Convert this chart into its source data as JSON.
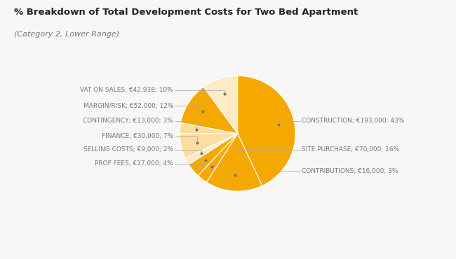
{
  "title": "% Breakdown of Total Development Costs for Two Bed Apartment",
  "subtitle": "(Category 2, Lower Range)",
  "values": [
    43,
    16,
    3,
    4,
    2,
    7,
    3,
    12,
    10
  ],
  "slice_colors": [
    "#F5A800",
    "#F5A800",
    "#F5A800",
    "#F5A800",
    "#FDEBC8",
    "#FDDEA0",
    "#FDDEA0",
    "#F5A800",
    "#FDEBC8"
  ],
  "labels": [
    "CONSTRUCTION; €193,000; 43%",
    "SITE PURCHASE; €70,000; 16%",
    "CONTRIBUTIONS; €16,000; 3%",
    "PROF FEES; €17,000; 4%",
    "SELLING COSTS; €9,000; 2%",
    "FINANCE; €30,000; 7%",
    "CONTINGENCY; €13,000; 3%",
    "MARGIN/RISK; €52,000; 12%",
    "VAT ON SALES; €42,938; 10%"
  ],
  "background_color": "#f7f7f7",
  "title_fontsize": 9.5,
  "subtitle_fontsize": 8.0,
  "label_fontsize": 6.5,
  "label_color": "#777777",
  "title_color": "#222222",
  "line_color": "#aaaaaa",
  "dot_color": "#777777"
}
